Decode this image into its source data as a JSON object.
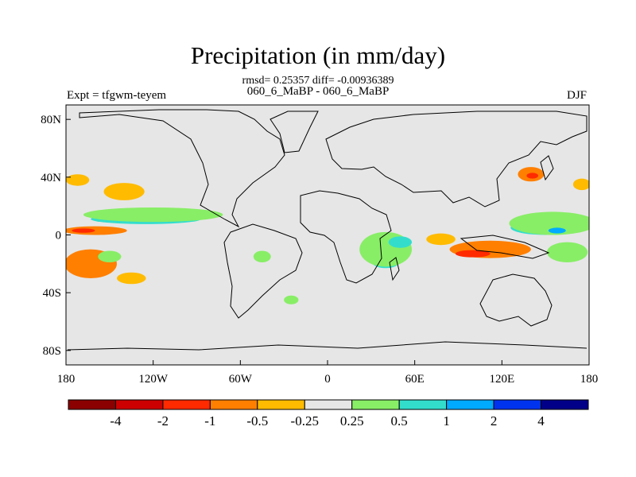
{
  "header": {
    "title": "Precipitation (in mm/day)",
    "stats": "rmsd= 0.25357 diff= -0.00936389",
    "cases": "060_6_MaBP - 060_6_MaBP",
    "experiment": "Expt = tfgwm-teyem",
    "season": "DJF"
  },
  "chart_data": {
    "type": "heatmap",
    "title": "Precipitation (in mm/day)",
    "subtitle": "rmsd= 0.25357 diff= -0.00936389",
    "xlabel": "",
    "ylabel": "",
    "xlim": [
      -180,
      180
    ],
    "ylim": [
      -90,
      90
    ],
    "x_ticks": [
      {
        "value": -180,
        "label": "180"
      },
      {
        "value": -120,
        "label": "120W"
      },
      {
        "value": -60,
        "label": "60W"
      },
      {
        "value": 0,
        "label": "0"
      },
      {
        "value": 60,
        "label": "60E"
      },
      {
        "value": 120,
        "label": "120E"
      },
      {
        "value": 180,
        "label": "180"
      }
    ],
    "y_ticks": [
      {
        "value": 80,
        "label": "80N"
      },
      {
        "value": 40,
        "label": "40N"
      },
      {
        "value": 0,
        "label": "0"
      },
      {
        "value": -40,
        "label": "40S"
      },
      {
        "value": -80,
        "label": "80S"
      }
    ],
    "colorbar": {
      "labels": [
        "-4",
        "-2",
        "-1",
        "-0.5",
        "-0.25",
        "0.25",
        "0.5",
        "1",
        "2",
        "4"
      ],
      "colors": [
        "#8b0000",
        "#cc0000",
        "#ff2a00",
        "#ff7f00",
        "#ffbb00",
        "#e6e6e6",
        "#88ee66",
        "#33ddcc",
        "#00aaff",
        "#0033ee",
        "#000088"
      ]
    },
    "regions": [
      {
        "name": "north-pacific-midlat",
        "lon": -140,
        "lat": 30,
        "rlon": 14,
        "rlat": 6,
        "value": -0.4
      },
      {
        "name": "north-pacific-west",
        "lon": -172,
        "lat": 38,
        "rlon": 8,
        "rlat": 4,
        "value": -0.4
      },
      {
        "name": "north-pacific-cyan-band",
        "lon": -125,
        "lat": 11,
        "rlon": 38,
        "rlat": 3.5,
        "value": 0.8
      },
      {
        "name": "north-pacific-green-band",
        "lon": -120,
        "lat": 14,
        "rlon": 48,
        "rlat": 5,
        "value": 0.35
      },
      {
        "name": "equatorial-pacific-orange",
        "lon": -160,
        "lat": 3,
        "rlon": 22,
        "rlat": 3,
        "value": -0.7
      },
      {
        "name": "equatorial-pacific-red",
        "lon": -168,
        "lat": 3,
        "rlon": 8,
        "rlat": 1.5,
        "value": -1.5
      },
      {
        "name": "south-pacific-orange",
        "lon": -163,
        "lat": -20,
        "rlon": 18,
        "rlat": 10,
        "value": -0.6
      },
      {
        "name": "south-pacific-green",
        "lon": -150,
        "lat": -15,
        "rlon": 8,
        "rlat": 4,
        "value": 0.35
      },
      {
        "name": "south-pacific-yellow",
        "lon": -135,
        "lat": -30,
        "rlon": 10,
        "rlat": 4,
        "value": -0.3
      },
      {
        "name": "south-america-green",
        "lon": -45,
        "lat": -15,
        "rlon": 6,
        "rlat": 4,
        "value": 0.35
      },
      {
        "name": "south-atlantic-green",
        "lon": -25,
        "lat": -45,
        "rlon": 5,
        "rlat": 3,
        "value": 0.35
      },
      {
        "name": "africa-indian-cyan",
        "lon": 40,
        "lat": -18,
        "rlon": 10,
        "rlat": 5,
        "value": 0.8
      },
      {
        "name": "africa-indian-green",
        "lon": 40,
        "lat": -10,
        "rlon": 18,
        "rlat": 12,
        "value": 0.35
      },
      {
        "name": "indian-ocean-cyan",
        "lon": 50,
        "lat": -5,
        "rlon": 8,
        "rlat": 4,
        "value": 0.8
      },
      {
        "name": "indian-ocean-orange",
        "lon": 78,
        "lat": -3,
        "rlon": 10,
        "rlat": 4,
        "value": -0.5
      },
      {
        "name": "maritime-continent-orange",
        "lon": 112,
        "lat": -10,
        "rlon": 28,
        "rlat": 6,
        "value": -0.7
      },
      {
        "name": "maritime-continent-red",
        "lon": 100,
        "lat": -13,
        "rlon": 12,
        "rlat": 2.5,
        "value": -1.5
      },
      {
        "name": "west-pacific-cyan",
        "lon": 150,
        "lat": 5,
        "rlon": 24,
        "rlat": 5,
        "value": 0.8
      },
      {
        "name": "west-pacific-green",
        "lon": 155,
        "lat": 8,
        "rlon": 30,
        "rlat": 8,
        "value": 0.35
      },
      {
        "name": "west-pacific-blue",
        "lon": 158,
        "lat": 3,
        "rlon": 6,
        "rlat": 2,
        "value": 1.5
      },
      {
        "name": "south-pacific-convergence-green",
        "lon": 165,
        "lat": -12,
        "rlon": 14,
        "rlat": 7,
        "value": 0.35
      },
      {
        "name": "kuroshio-orange",
        "lon": 140,
        "lat": 42,
        "rlon": 9,
        "rlat": 5,
        "value": -0.6
      },
      {
        "name": "kuroshio-red",
        "lon": 141,
        "lat": 41,
        "rlon": 4,
        "rlat": 2,
        "value": -1.5
      },
      {
        "name": "north-pacific-east-yellow",
        "lon": 175,
        "lat": 35,
        "rlon": 6,
        "rlat": 4,
        "value": -0.3
      }
    ]
  }
}
